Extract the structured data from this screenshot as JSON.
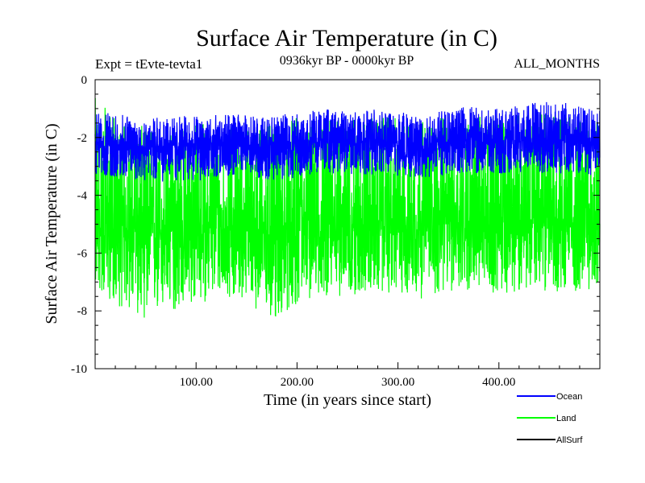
{
  "chart_data": {
    "type": "line",
    "title": "Surface Air Temperature (in C)",
    "subtitle_left": "Expt = tEvte-tevta1",
    "subtitle_center": "0936kyr BP - 0000kyr BP",
    "subtitle_right": "ALL_MONTHS",
    "xlabel": "Time (in years since start)",
    "ylabel": "Surface Air Temperature (in C)",
    "xlim": [
      0,
      500
    ],
    "ylim": [
      -10,
      0
    ],
    "x_ticks": [
      100,
      200,
      300,
      400
    ],
    "x_tick_labels": [
      "100.00",
      "200.00",
      "300.00",
      "400.00"
    ],
    "y_ticks": [
      0,
      -2,
      -4,
      -6,
      -8,
      -10
    ],
    "y_tick_labels": [
      "0",
      "-2",
      "-4",
      "-6",
      "-8",
      "-10"
    ],
    "series": [
      {
        "name": "Ocean",
        "color": "#0000ff",
        "x": [
          0,
          25,
          50,
          75,
          100,
          125,
          150,
          175,
          200,
          225,
          250,
          275,
          300,
          325,
          350,
          375,
          400,
          425,
          450,
          475,
          500
        ],
        "mean": [
          -2.25,
          -2.25,
          -2.3,
          -2.3,
          -2.25,
          -2.25,
          -2.25,
          -2.3,
          -2.2,
          -2.1,
          -2.15,
          -2.1,
          -2.15,
          -2.2,
          -2.15,
          -2.1,
          -2.1,
          -2.05,
          -2.1,
          -2.15,
          -2.15
        ],
        "min": [
          -3.3,
          -3.4,
          -3.5,
          -3.6,
          -3.5,
          -3.4,
          -3.3,
          -3.5,
          -3.4,
          -3.2,
          -3.3,
          -3.3,
          -3.4,
          -3.4,
          -3.3,
          -3.3,
          -3.3,
          -3.2,
          -3.3,
          -3.3,
          -3.3
        ],
        "max": [
          -1.1,
          -1.2,
          -1.3,
          -1.3,
          -1.2,
          -1.2,
          -1.2,
          -1.3,
          -1.1,
          -1.0,
          -1.1,
          -1.0,
          -1.0,
          -1.1,
          -1.0,
          -0.9,
          -1.0,
          -0.8,
          -0.6,
          -0.9,
          -1.0
        ]
      },
      {
        "name": "Land",
        "color": "#00ff00",
        "x": [
          0,
          25,
          50,
          75,
          100,
          125,
          150,
          175,
          200,
          225,
          250,
          275,
          300,
          325,
          350,
          375,
          400,
          425,
          450,
          475,
          500
        ],
        "mean": [
          -5.1,
          -5.2,
          -5.3,
          -5.3,
          -5.2,
          -5.1,
          -5.2,
          -5.3,
          -5.0,
          -4.9,
          -5.0,
          -5.0,
          -5.0,
          -5.0,
          -4.9,
          -4.9,
          -5.0,
          -4.9,
          -4.8,
          -4.9,
          -5.0
        ],
        "min": [
          -7.3,
          -7.9,
          -8.3,
          -8.1,
          -7.8,
          -7.5,
          -7.6,
          -8.5,
          -7.8,
          -7.5,
          -7.5,
          -7.4,
          -7.4,
          -7.6,
          -7.4,
          -7.3,
          -7.4,
          -7.3,
          -7.3,
          -7.4,
          -7.2
        ],
        "max": [
          -0.6,
          -1.5,
          -1.6,
          -1.7,
          -1.4,
          -1.5,
          -1.4,
          -1.6,
          -1.3,
          -1.2,
          -1.4,
          -1.3,
          -1.3,
          -1.4,
          -1.3,
          -1.2,
          -1.3,
          -1.2,
          -1.1,
          -1.3,
          -1.3
        ]
      },
      {
        "name": "AllSurf",
        "color": "#000000",
        "x": [],
        "mean": [],
        "min": [],
        "max": []
      }
    ],
    "legend_position": "bottom-right"
  }
}
